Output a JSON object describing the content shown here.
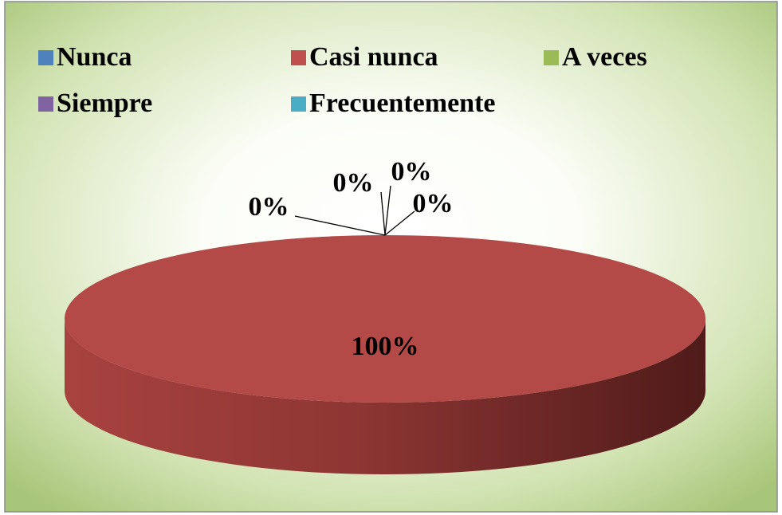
{
  "chart_data": {
    "type": "pie",
    "categories": [
      "Nunca",
      "Casi nunca",
      "A veces",
      "Siempre",
      "Frecuentemente"
    ],
    "values": [
      0,
      100,
      0,
      0,
      0
    ],
    "value_labels": [
      "0%",
      "100%",
      "0%",
      "0%",
      "0%"
    ],
    "colors": [
      "#4f81bd",
      "#c0504d",
      "#9bbb59",
      "#8064a2",
      "#4bacc6"
    ],
    "legend": "top"
  }
}
